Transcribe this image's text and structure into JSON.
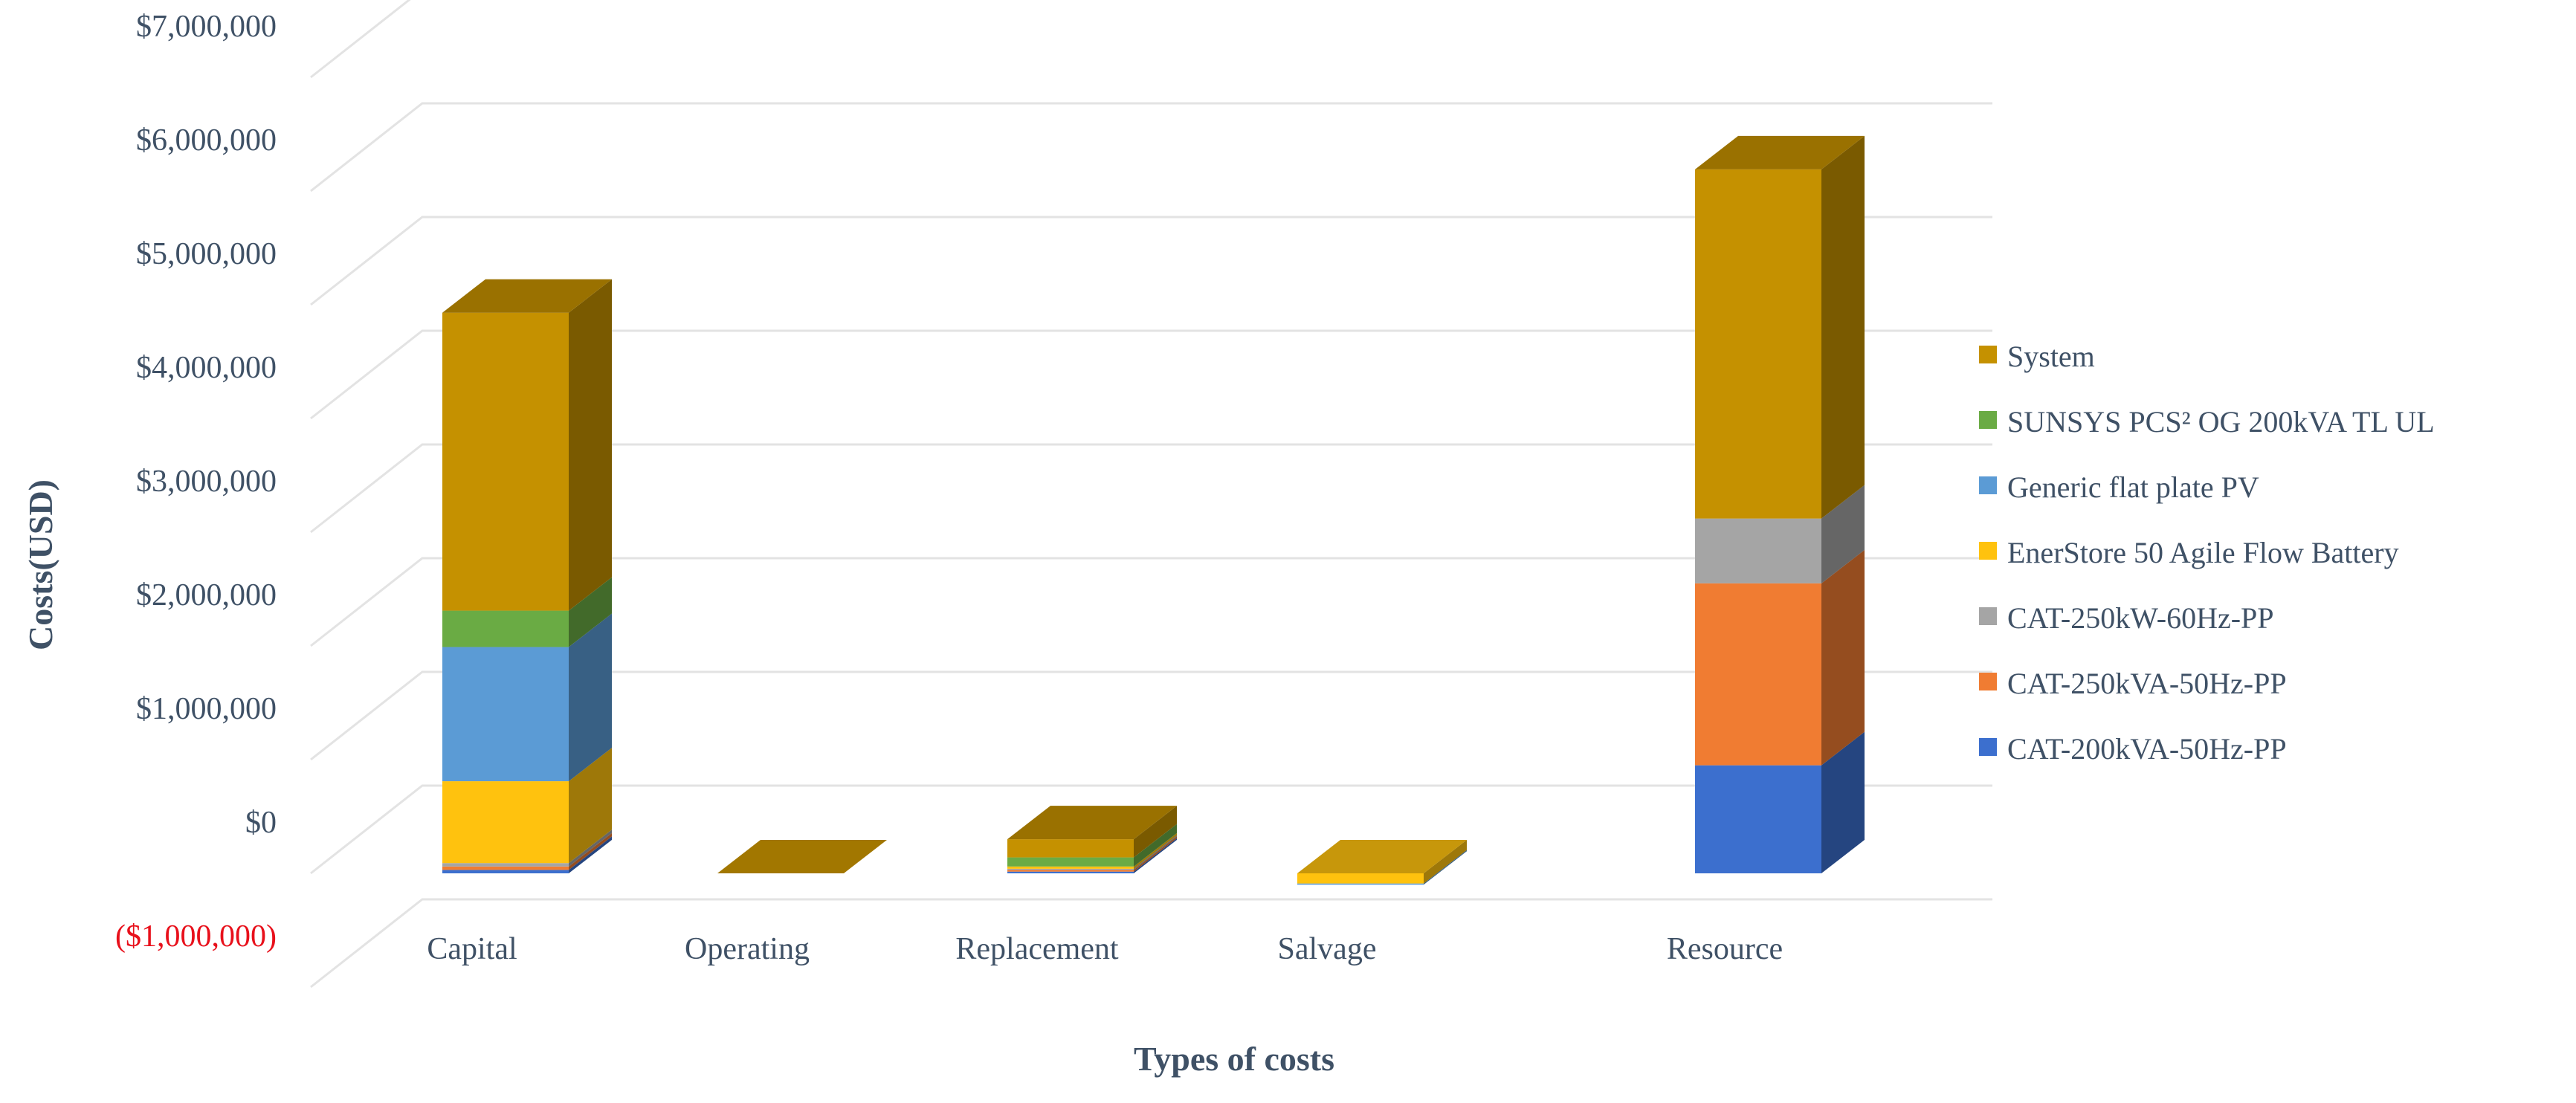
{
  "chart_data": {
    "type": "bar",
    "stacked": true,
    "three_d": true,
    "xlabel": "Types of costs",
    "ylabel": "Costs(USD)",
    "ylim": [
      -1000000,
      7000000
    ],
    "yticks": [
      -1000000,
      0,
      1000000,
      2000000,
      3000000,
      4000000,
      5000000,
      6000000,
      7000000
    ],
    "ytick_labels": [
      "($1,000,000)",
      "$0",
      "$1,000,000",
      "$2,000,000",
      "$3,000,000",
      "$4,000,000",
      "$5,000,000",
      "$6,000,000",
      "$7,000,000"
    ],
    "negative_tick_color": "#e8101b",
    "grid": true,
    "legend_position": "right",
    "categories": [
      "Capital",
      "Operating",
      "Replacement",
      "Salvage",
      "Resource"
    ],
    "series": [
      {
        "name": "CAT-200kVA-50Hz-PP",
        "color": "#3c6fce",
        "values": [
          30000,
          0,
          15000,
          0,
          950000
        ]
      },
      {
        "name": "CAT-250kVA-50Hz-PP",
        "color": "#f07c32",
        "values": [
          30000,
          0,
          15000,
          0,
          1600000
        ]
      },
      {
        "name": "CAT-250kW-60Hz-PP",
        "color": "#a5a5a5",
        "values": [
          30000,
          0,
          10000,
          0,
          570000
        ]
      },
      {
        "name": "EnerStore 50 Agile Flow Battery",
        "color": "#ffc20e",
        "values": [
          720000,
          0,
          20000,
          -90000,
          0
        ]
      },
      {
        "name": "Generic flat plate PV",
        "color": "#5b9bd5",
        "values": [
          1180000,
          0,
          0,
          -10000,
          0
        ]
      },
      {
        "name": "SUNSYS PCS² OG 200kVA TL UL",
        "color": "#6aab44",
        "values": [
          320000,
          0,
          80000,
          0,
          0
        ]
      },
      {
        "name": "System",
        "color": "#c59100",
        "values": [
          2620000,
          0,
          160000,
          0,
          3070000
        ]
      }
    ]
  }
}
